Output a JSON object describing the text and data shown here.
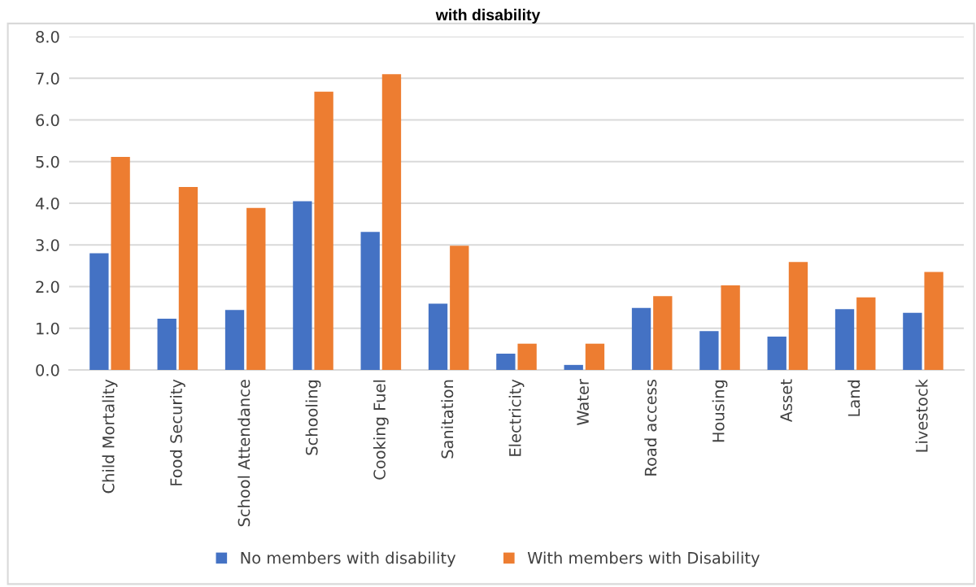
{
  "chart_data": {
    "type": "bar",
    "title": "with disability",
    "categories": [
      "Child Mortality",
      "Food Security",
      "School Attendance",
      "Schooling",
      "Cooking Fuel",
      "Sanitation",
      "Electricity",
      "Water",
      "Road access",
      "Housing",
      "Asset",
      "Land",
      "Livestock"
    ],
    "series": [
      {
        "name": "No members with disability",
        "color": "#4472c4",
        "values": [
          2.8,
          1.23,
          1.44,
          4.05,
          3.31,
          1.59,
          0.39,
          0.12,
          1.49,
          0.93,
          0.8,
          1.46,
          1.37
        ]
      },
      {
        "name": "With members with Disability",
        "color": "#ed7d31",
        "values": [
          5.11,
          4.39,
          3.89,
          6.68,
          7.1,
          2.98,
          0.63,
          0.63,
          1.77,
          2.03,
          2.59,
          1.74,
          2.35
        ]
      }
    ],
    "ylim": [
      0,
      8
    ],
    "yticks": [
      {
        "value": 0,
        "label": "0.0"
      },
      {
        "value": 1,
        "label": "1.0"
      },
      {
        "value": 2,
        "label": "2.0"
      },
      {
        "value": 3,
        "label": "3.0"
      },
      {
        "value": 4,
        "label": "4.0"
      },
      {
        "value": 5,
        "label": "5.0"
      },
      {
        "value": 6,
        "label": "6.0"
      },
      {
        "value": 7,
        "label": "7.0"
      },
      {
        "value": 8,
        "label": "8.0"
      }
    ],
    "grid": "y",
    "legend": "bottom"
  }
}
